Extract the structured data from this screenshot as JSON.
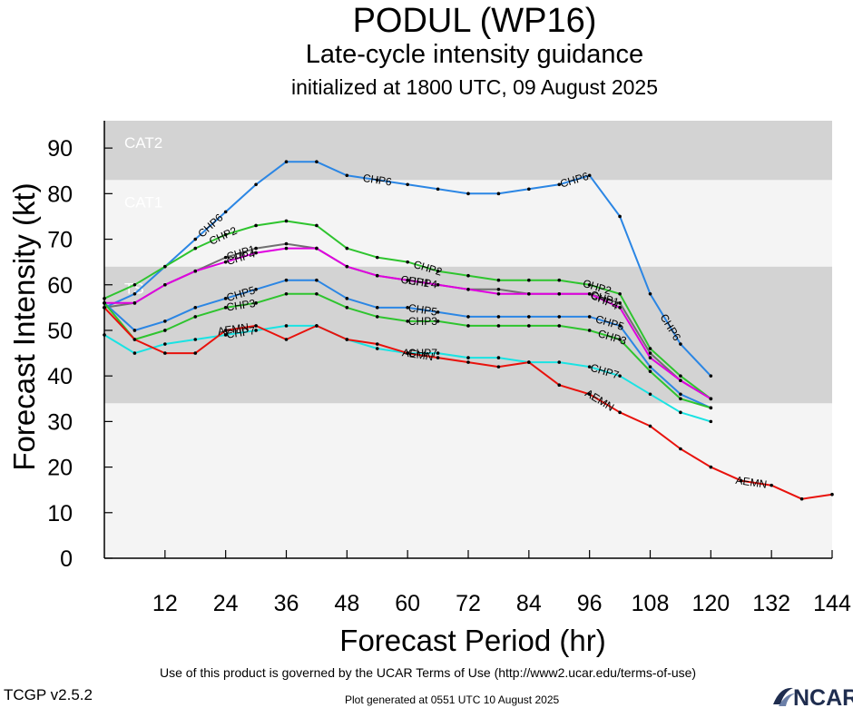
{
  "header": {
    "title": "PODUL (WP16)",
    "subtitle": "Late-cycle intensity guidance",
    "init": "initialized at 1800 UTC, 09 August 2025"
  },
  "footer": {
    "terms": "Use of this product is governed by the UCAR Terms of Use (http://www2.ucar.edu/terms-of-use)",
    "version": "TCGP v2.5.2",
    "generated": "Plot generated at 0551 UTC   10 August 2025",
    "logo_text": "NCAR"
  },
  "chart_data": {
    "type": "line",
    "title": "",
    "xlabel": "Forecast Period (hr)",
    "ylabel": "Forecast Intensity (kt)",
    "xlim": [
      0,
      144
    ],
    "ylim": [
      0,
      96
    ],
    "x_ticks": [
      12,
      24,
      36,
      48,
      60,
      72,
      84,
      96,
      108,
      120,
      132,
      144
    ],
    "y_ticks": [
      0,
      10,
      20,
      30,
      40,
      50,
      60,
      70,
      80,
      90
    ],
    "grid": false,
    "bands": [
      {
        "label": "",
        "ymin": 0,
        "ymax": 34,
        "color": "#f4f4f4"
      },
      {
        "label": "TS",
        "ymin": 34,
        "ymax": 64,
        "color": "#d3d3d3"
      },
      {
        "label": "CAT1",
        "ymin": 64,
        "ymax": 83,
        "color": "#f4f4f4"
      },
      {
        "label": "CAT2",
        "ymin": 83,
        "ymax": 96,
        "color": "#d3d3d3"
      }
    ],
    "series": [
      {
        "name": "CHP6",
        "color": "#2b86e4",
        "x": [
          0,
          6,
          12,
          18,
          24,
          30,
          36,
          42,
          48,
          54,
          60,
          66,
          72,
          78,
          84,
          90,
          96,
          102,
          108,
          114,
          120
        ],
        "y": [
          55,
          58,
          64,
          70,
          76,
          82,
          87,
          87,
          84,
          83,
          82,
          81,
          80,
          80,
          81,
          82,
          84,
          75,
          58,
          47,
          40
        ],
        "label_x": [
          21,
          54,
          93,
          112
        ]
      },
      {
        "name": "CHP2",
        "color": "#2ec42e",
        "x": [
          0,
          6,
          12,
          18,
          24,
          30,
          36,
          42,
          48,
          54,
          60,
          66,
          72,
          78,
          84,
          90,
          96,
          102,
          108,
          114,
          120
        ],
        "y": [
          57,
          60,
          64,
          68,
          71,
          73,
          74,
          73,
          68,
          66,
          65,
          63,
          62,
          61,
          61,
          61,
          60,
          58,
          46,
          40,
          35
        ],
        "label_x": [
          23.5,
          64,
          97.5
        ]
      },
      {
        "name": "CHP1",
        "color": "#707070",
        "x": [
          0,
          6,
          12,
          18,
          24,
          30,
          36,
          42,
          48,
          54,
          60,
          66,
          72,
          78,
          84,
          90,
          96,
          102,
          108,
          114,
          120
        ],
        "y": [
          55,
          56,
          60,
          63,
          66,
          68,
          69,
          68,
          64,
          62,
          61,
          60,
          59,
          59,
          58,
          58,
          58,
          56,
          45,
          39,
          35
        ],
        "label_x": [
          27,
          61.5,
          99
        ]
      },
      {
        "name": "CHP4",
        "color": "#e000e0",
        "x": [
          0,
          6,
          12,
          18,
          24,
          30,
          36,
          42,
          48,
          54,
          60,
          66,
          72,
          78,
          84,
          90,
          96,
          102,
          108,
          114,
          120
        ],
        "y": [
          56,
          56,
          60,
          63,
          65,
          67,
          68,
          68,
          64,
          62,
          61,
          60,
          59,
          58,
          58,
          58,
          58,
          55,
          44,
          39,
          35
        ],
        "label_x": [
          27,
          63,
          99
        ]
      },
      {
        "name": "CHP5",
        "color": "#2b86e4",
        "x": [
          0,
          6,
          12,
          18,
          24,
          30,
          36,
          42,
          48,
          54,
          60,
          66,
          72,
          78,
          84,
          90,
          96,
          102,
          108,
          114,
          120
        ],
        "y": [
          56,
          50,
          52,
          55,
          57,
          59,
          61,
          61,
          57,
          55,
          55,
          54,
          53,
          53,
          53,
          53,
          53,
          51,
          42,
          36,
          33
        ],
        "label_x": [
          27,
          63,
          100
        ]
      },
      {
        "name": "CHP3",
        "color": "#2ec42e",
        "x": [
          0,
          6,
          12,
          18,
          24,
          30,
          36,
          42,
          48,
          54,
          60,
          66,
          72,
          78,
          84,
          90,
          96,
          102,
          108,
          114,
          120
        ],
        "y": [
          56,
          48,
          50,
          53,
          55,
          56,
          58,
          58,
          55,
          53,
          52,
          52,
          51,
          51,
          51,
          51,
          50,
          48,
          41,
          35,
          33
        ],
        "label_x": [
          27,
          63,
          100.5
        ]
      },
      {
        "name": "CHP7",
        "color": "#19e3e3",
        "x": [
          0,
          6,
          12,
          18,
          24,
          30,
          36,
          42,
          48,
          54,
          60,
          66,
          72,
          78,
          84,
          90,
          96,
          102,
          108,
          114,
          120
        ],
        "y": [
          49,
          45,
          47,
          48,
          49,
          50,
          51,
          51,
          48,
          46,
          45,
          45,
          44,
          44,
          43,
          43,
          42,
          40,
          36,
          32,
          30
        ],
        "label_x": [
          27,
          63,
          99
        ]
      },
      {
        "name": "AEMN",
        "color": "#e8120c",
        "x": [
          0,
          6,
          12,
          18,
          24,
          30,
          36,
          42,
          48,
          54,
          60,
          66,
          72,
          78,
          84,
          90,
          96,
          102,
          108,
          114,
          120,
          126,
          132,
          138,
          144
        ],
        "y": [
          55,
          48,
          45,
          45,
          50,
          51,
          48,
          51,
          48,
          47,
          45,
          44,
          43,
          42,
          43,
          38,
          36,
          32,
          29,
          24,
          20,
          17,
          16,
          13,
          14
        ],
        "label_x": [
          25.5,
          62,
          98,
          128
        ]
      }
    ]
  }
}
